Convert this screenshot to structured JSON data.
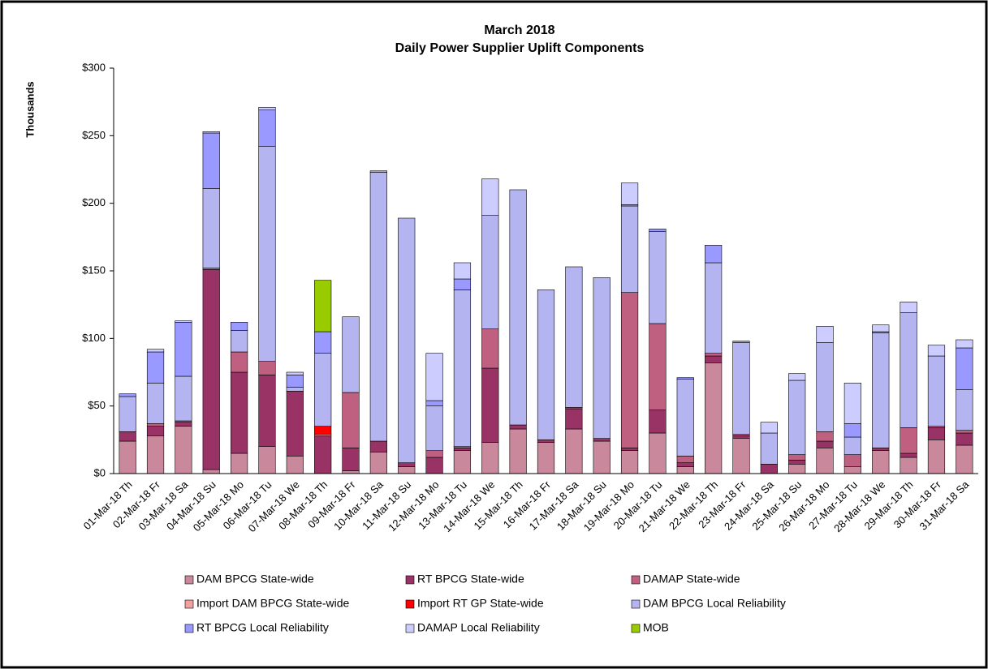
{
  "chart_data": {
    "type": "bar",
    "stacked": true,
    "title": "March 2018",
    "subtitle": "Daily Power Supplier Uplift Components",
    "y_label": "Thousands",
    "categories": [
      "01-Mar-18 Th",
      "02-Mar-18 Fr",
      "03-Mar-18 Sa",
      "04-Mar-18 Su",
      "05-Mar-18 Mo",
      "06-Mar-18 Tu",
      "07-Mar-18 We",
      "08-Mar-18 Th",
      "09-Mar-18 Fr",
      "10-Mar-18 Sa",
      "11-Mar-18 Su",
      "12-Mar-18 Mo",
      "13-Mar-18 Tu",
      "14-Mar-18 We",
      "15-Mar-18 Th",
      "16-Mar-18 Fr",
      "17-Mar-18 Sa",
      "18-Mar-18 Su",
      "19-Mar-18 Mo",
      "20-Mar-18 Tu",
      "21-Mar-18 We",
      "22-Mar-18 Th",
      "23-Mar-18 Fr",
      "24-Mar-18 Sa",
      "25-Mar-18 Su",
      "26-Mar-18 Mo",
      "27-Mar-18 Tu",
      "28-Mar-18 We",
      "29-Mar-18 Th",
      "30-Mar-18 Fr",
      "31-Mar-18 Sa"
    ],
    "series": [
      {
        "name": "DAM BPCG State-wide",
        "color": "#c9889b",
        "values": [
          24,
          28,
          35,
          3,
          15,
          20,
          13,
          0,
          2,
          16,
          5,
          0,
          17,
          23,
          33,
          23,
          33,
          24,
          17,
          30,
          5,
          82,
          26,
          0,
          7,
          19,
          5,
          17,
          12,
          25,
          21
        ]
      },
      {
        "name": "RT BPCG State-wide",
        "color": "#993366",
        "values": [
          7,
          7,
          3,
          148,
          60,
          53,
          48,
          28,
          17,
          8,
          3,
          12,
          2,
          55,
          3,
          2,
          15,
          2,
          2,
          17,
          3,
          5,
          2,
          7,
          3,
          5,
          0,
          2,
          3,
          9,
          9
        ]
      },
      {
        "name": "DAMAP State-wide",
        "color": "#c06080",
        "values": [
          0,
          2,
          1,
          1,
          15,
          10,
          0,
          0,
          41,
          0,
          0,
          5,
          1,
          29,
          0,
          0,
          1,
          0,
          115,
          64,
          5,
          2,
          1,
          0,
          4,
          7,
          9,
          0,
          19,
          1,
          2
        ]
      },
      {
        "name": "Import DAM BPCG State-wide",
        "color": "#f4a0a0",
        "values": [
          0,
          0,
          0,
          0,
          0,
          0,
          0,
          1,
          0,
          0,
          0,
          0,
          0,
          0,
          0,
          0,
          0,
          0,
          0,
          0,
          0,
          0,
          0,
          0,
          0,
          0,
          0,
          0,
          0,
          0,
          0
        ]
      },
      {
        "name": "Import RT GP State-wide",
        "color": "#ff0000",
        "values": [
          0,
          0,
          0,
          0,
          0,
          0,
          0,
          6,
          0,
          0,
          0,
          0,
          0,
          0,
          0,
          0,
          0,
          0,
          0,
          0,
          0,
          0,
          0,
          0,
          0,
          0,
          0,
          0,
          0,
          0,
          0
        ]
      },
      {
        "name": "DAM BPCG Local Reliability",
        "color": "#b4b4f0",
        "values": [
          26,
          30,
          33,
          59,
          16,
          159,
          3,
          54,
          56,
          199,
          181,
          33,
          116,
          84,
          174,
          111,
          104,
          119,
          64,
          68,
          57,
          67,
          68,
          23,
          55,
          66,
          13,
          85,
          85,
          52,
          30
        ]
      },
      {
        "name": "RT BPCG Local Reliability",
        "color": "#9999ff",
        "values": [
          2,
          23,
          40,
          41,
          6,
          27,
          9,
          16,
          0,
          1,
          0,
          4,
          8,
          0,
          0,
          0,
          0,
          0,
          1,
          2,
          1,
          13,
          1,
          0,
          0,
          0,
          10,
          1,
          0,
          0,
          31
        ]
      },
      {
        "name": "DAMAP Local Reliability",
        "color": "#ccccff",
        "values": [
          0,
          2,
          1,
          1,
          0,
          2,
          2,
          0,
          0,
          0,
          0,
          35,
          12,
          27,
          0,
          0,
          0,
          0,
          16,
          0,
          0,
          0,
          0,
          8,
          5,
          12,
          30,
          5,
          8,
          8,
          6
        ]
      },
      {
        "name": "MOB",
        "color": "#99cc00",
        "values": [
          0,
          0,
          0,
          0,
          0,
          0,
          0,
          38,
          0,
          0,
          0,
          0,
          0,
          0,
          0,
          0,
          0,
          0,
          0,
          0,
          0,
          0,
          0,
          0,
          0,
          0,
          0,
          0,
          0,
          0,
          0
        ]
      }
    ],
    "ylim": [
      0,
      300
    ],
    "yticks": [
      {
        "value": 0,
        "label": "$0"
      },
      {
        "value": 50,
        "label": "$50"
      },
      {
        "value": 100,
        "label": "$100"
      },
      {
        "value": 150,
        "label": "$150"
      },
      {
        "value": 200,
        "label": "$200"
      },
      {
        "value": 250,
        "label": "$250"
      },
      {
        "value": 300,
        "label": "$300"
      }
    ],
    "grid": false
  }
}
